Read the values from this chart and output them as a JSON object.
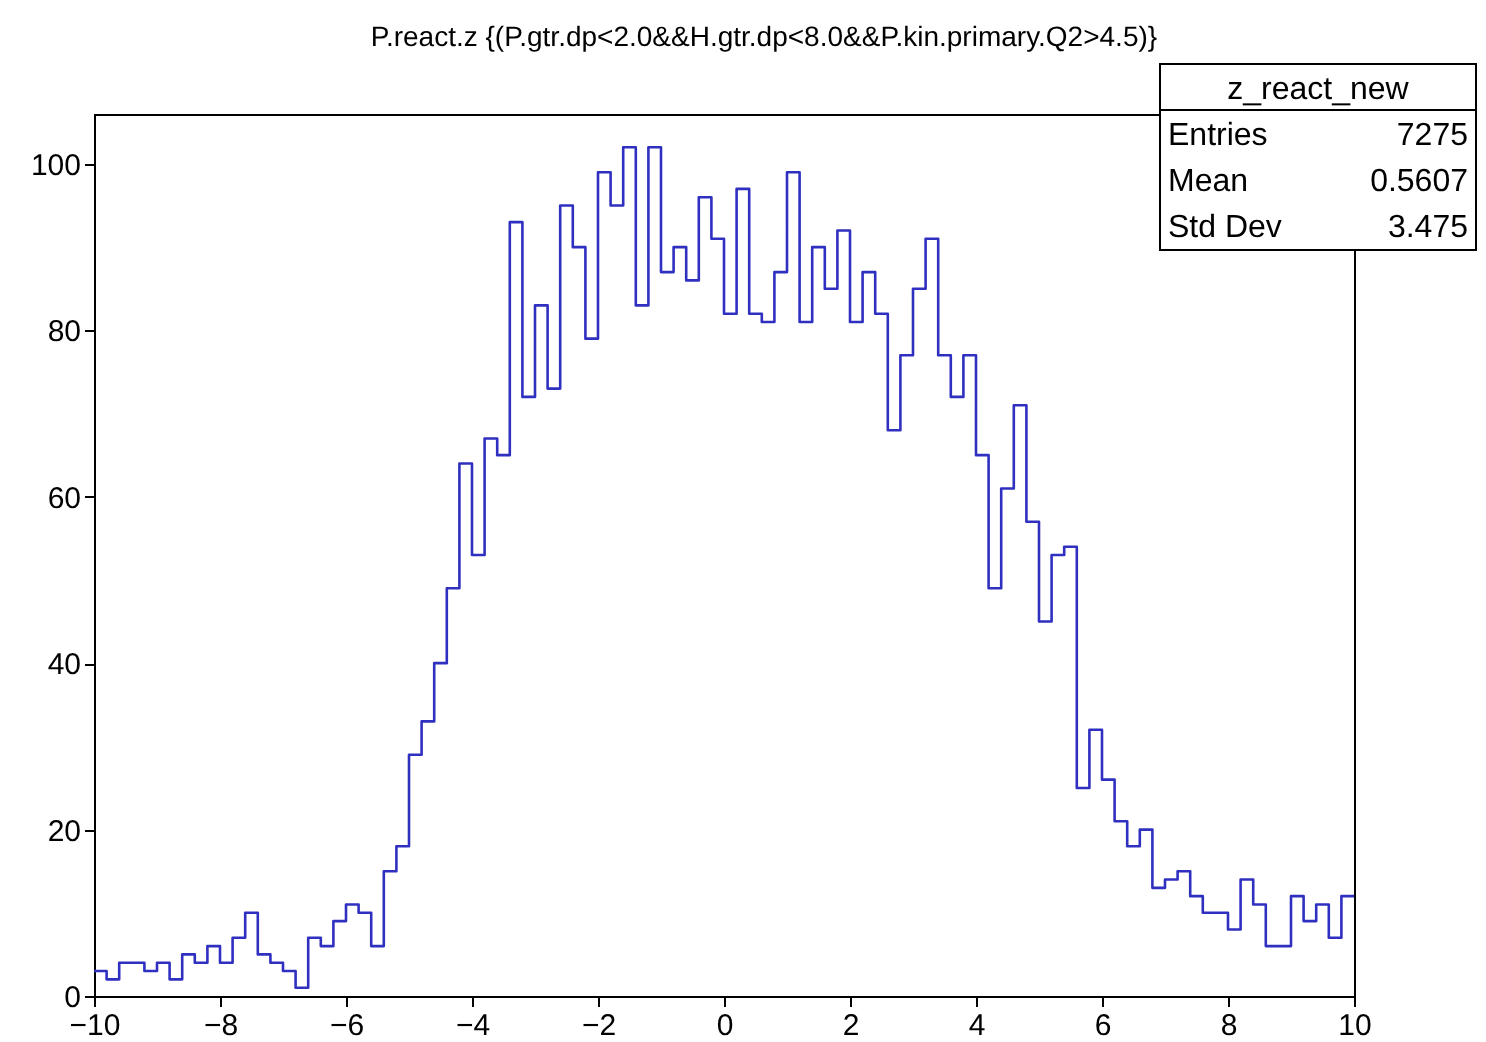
{
  "chart_data": {
    "type": "histogram",
    "title": "P.react.z {(P.gtr.dp<2.0&&H.gtr.dp<8.0&&P.kin.primary.Q2>4.5)}",
    "bins": [
      -10,
      -9.8,
      -9.6,
      -9.4,
      -9.2,
      -9,
      -8.8,
      -8.6,
      -8.4,
      -8.2,
      -8,
      -7.8,
      -7.6,
      -7.4,
      -7.2,
      -7,
      -6.8,
      -6.6,
      -6.4,
      -6.2,
      -6,
      -5.8,
      -5.6,
      -5.4,
      -5.2,
      -5,
      -4.8,
      -4.6,
      -4.4,
      -4.2,
      -4,
      -3.8,
      -3.6,
      -3.4,
      -3.2,
      -3,
      -2.8,
      -2.6,
      -2.4,
      -2.2,
      -2,
      -1.8,
      -1.6,
      -1.4,
      -1.2,
      -1,
      -0.8,
      -0.6,
      -0.4,
      -0.2,
      0,
      0.2,
      0.4,
      0.6,
      0.8,
      1,
      1.2,
      1.4,
      1.6,
      1.8,
      2,
      2.2,
      2.4,
      2.6,
      2.8,
      3,
      3.2,
      3.4,
      3.6,
      3.8,
      4,
      4.2,
      4.4,
      4.6,
      4.8,
      5,
      5.2,
      5.4,
      5.6,
      5.8,
      6,
      6.2,
      6.4,
      6.6,
      6.8,
      7,
      7.2,
      7.4,
      7.6,
      7.8,
      8,
      8.2,
      8.4,
      8.6,
      8.8,
      9,
      9.2,
      9.4,
      9.6,
      9.8,
      10
    ],
    "values": [
      3,
      2,
      4,
      4,
      3,
      4,
      2,
      5,
      4,
      6,
      4,
      7,
      10,
      5,
      4,
      3,
      1,
      7,
      6,
      9,
      11,
      10,
      6,
      15,
      18,
      29,
      33,
      40,
      49,
      64,
      53,
      67,
      65,
      93,
      72,
      83,
      73,
      95,
      90,
      79,
      99,
      95,
      102,
      83,
      102,
      87,
      90,
      86,
      96,
      91,
      82,
      97,
      82,
      81,
      87,
      99,
      81,
      90,
      85,
      92,
      81,
      87,
      82,
      68,
      77,
      85,
      91,
      77,
      72,
      77,
      65,
      49,
      61,
      71,
      57,
      45,
      53,
      54,
      25,
      32,
      26,
      21,
      18,
      20,
      13,
      14,
      15,
      12,
      10,
      10,
      8,
      14,
      11,
      6,
      6,
      12,
      9,
      11,
      7,
      12
    ],
    "color": "#3030c0",
    "xlim": [
      -10,
      10
    ],
    "xticks": [
      -10,
      -8,
      -6,
      -4,
      -2,
      0,
      2,
      4,
      6,
      8,
      10
    ],
    "ylim": [
      0,
      106
    ],
    "yticks": [
      0,
      20,
      40,
      60,
      80,
      100
    ],
    "grid": false,
    "annotations": [
      "z_react_new",
      "Entries",
      "7275",
      "Mean",
      "0.5607",
      "Std Dev",
      "3.475"
    ]
  }
}
